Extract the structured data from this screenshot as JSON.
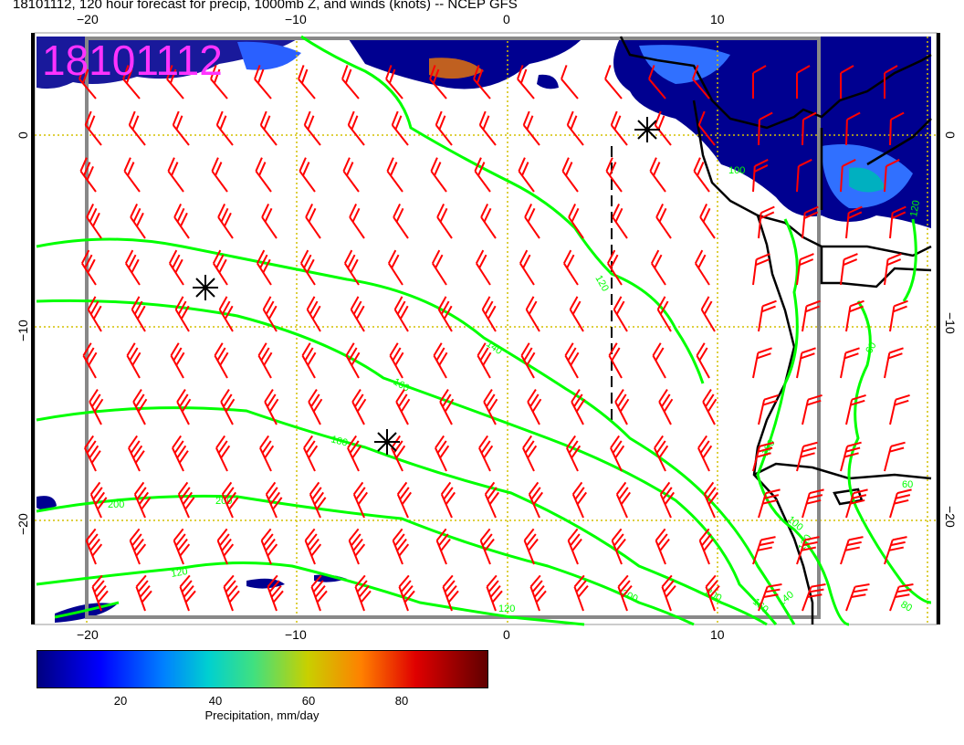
{
  "title": "18101112, 120 hour forecast for precip, 1000mb Z, and winds (knots) -- NCEP GFS",
  "stamp": "18101112",
  "lon_ticks": [
    "−20",
    "−10",
    "0",
    "10"
  ],
  "lat_ticks": [
    "0",
    "−10",
    "−20"
  ],
  "contour_labels": [
    "120",
    "140",
    "160",
    "180",
    "200",
    "200",
    "200",
    "120",
    "120",
    "200",
    "180",
    "160",
    "140",
    "120",
    "100",
    "80",
    "60",
    "60",
    "120",
    "100"
  ],
  "colorbar": {
    "ticks": [
      "20",
      "40",
      "60",
      "80"
    ],
    "title": "Precipitation, mm/day"
  },
  "colors": {
    "contour": "#00ff00",
    "barb": "#ff0000",
    "grid": "#d4c000",
    "stamp": "#ff33ff"
  },
  "icons": [
    "low-pressure-star-icon"
  ]
}
